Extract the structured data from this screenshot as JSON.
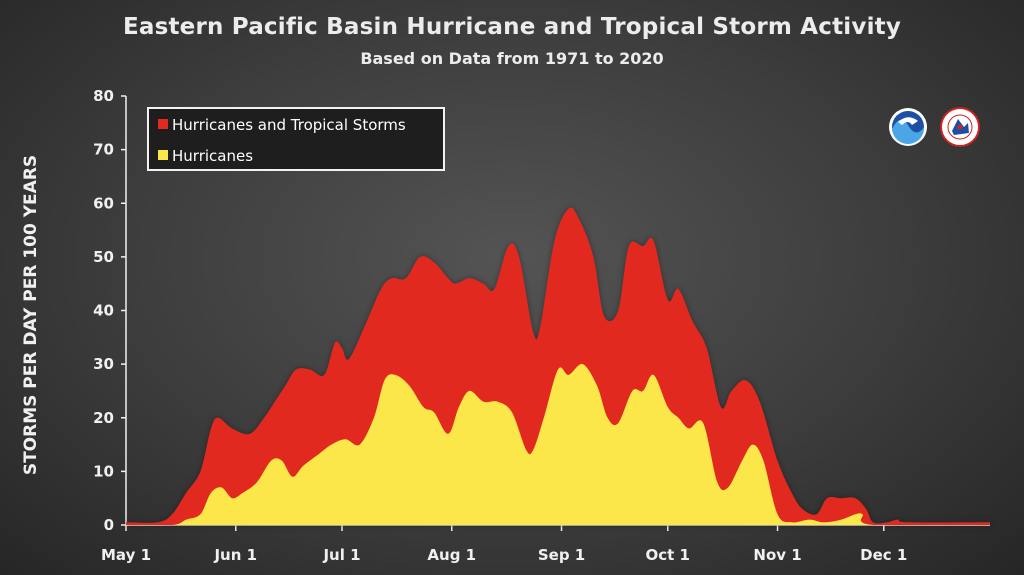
{
  "colors": {
    "tropical_storm_fill": "#e2291f",
    "hurricane_fill": "#fbe74a",
    "background": "#3c3c3c",
    "text": "#ececec"
  },
  "logos": [
    {
      "name": "noaa-logo",
      "icon": "noaa-emblem"
    },
    {
      "name": "nws-logo",
      "icon": "national-weather-service-emblem"
    }
  ],
  "chart_data": {
    "type": "area",
    "title": "Eastern Pacific Basin Hurricane and Tropical Storm Activity",
    "subtitle": "Based on Data from 1971 to 2020",
    "xlabel": "",
    "ylabel": "STORMS PER DAY PER 100 YEARS",
    "ylim": [
      0,
      80
    ],
    "yticks": [
      "0",
      "10",
      "20",
      "30",
      "40",
      "50",
      "60",
      "70",
      "80"
    ],
    "xlim": [
      "May 1",
      "Dec 31"
    ],
    "xticks": [
      "May 1",
      "Jun 1",
      "Jul 1",
      "Aug 1",
      "Sep 1",
      "Oct 1",
      "Nov 1",
      "Dec 1"
    ],
    "grid": false,
    "legend_position": "top-left",
    "series": [
      {
        "name": "Hurricanes and Tropical Storms",
        "color": "#e2291f",
        "points": [
          [
            "May 1",
            0.5
          ],
          [
            "May 10",
            0.5
          ],
          [
            "May 14",
            2
          ],
          [
            "May 18",
            6
          ],
          [
            "May 22",
            10
          ],
          [
            "May 25",
            18
          ],
          [
            "May 27",
            20
          ],
          [
            "May 31",
            18
          ],
          [
            "Jun 5",
            17
          ],
          [
            "Jun 9",
            20
          ],
          [
            "Jun 12",
            23
          ],
          [
            "Jun 15",
            26
          ],
          [
            "Jun 18",
            29
          ],
          [
            "Jun 22",
            29
          ],
          [
            "Jun 26",
            28
          ],
          [
            "Jun 29",
            34
          ],
          [
            "Jul 1",
            33
          ],
          [
            "Jul 3",
            31
          ],
          [
            "Jul 8",
            38
          ],
          [
            "Jul 12",
            44
          ],
          [
            "Jul 15",
            46
          ],
          [
            "Jul 19",
            46
          ],
          [
            "Jul 23",
            50
          ],
          [
            "Jul 27",
            49
          ],
          [
            "Jul 31",
            46
          ],
          [
            "Aug 2",
            45
          ],
          [
            "Aug 6",
            46
          ],
          [
            "Aug 10",
            45
          ],
          [
            "Aug 13",
            44
          ],
          [
            "Aug 17",
            52
          ],
          [
            "Aug 20",
            50
          ],
          [
            "Aug 24",
            36
          ],
          [
            "Aug 26",
            37
          ],
          [
            "Aug 30",
            53
          ],
          [
            "Sep 3",
            59
          ],
          [
            "Sep 6",
            57
          ],
          [
            "Sep 10",
            50
          ],
          [
            "Sep 13",
            39
          ],
          [
            "Sep 17",
            40
          ],
          [
            "Sep 20",
            52
          ],
          [
            "Sep 24",
            52
          ],
          [
            "Sep 27",
            53
          ],
          [
            "Oct 1",
            42
          ],
          [
            "Oct 4",
            44
          ],
          [
            "Oct 8",
            38
          ],
          [
            "Oct 12",
            33
          ],
          [
            "Oct 16",
            22
          ],
          [
            "Oct 19",
            25
          ],
          [
            "Oct 23",
            27
          ],
          [
            "Oct 27",
            23
          ],
          [
            "Nov 1",
            12
          ],
          [
            "Nov 5",
            6
          ],
          [
            "Nov 8",
            3
          ],
          [
            "Nov 12",
            2
          ],
          [
            "Nov 15",
            5
          ],
          [
            "Nov 19",
            5
          ],
          [
            "Nov 23",
            5
          ],
          [
            "Nov 26",
            3
          ],
          [
            "Nov 28",
            0.5
          ],
          [
            "Dec 2",
            0.5
          ],
          [
            "Dec 5",
            1
          ],
          [
            "Dec 8",
            0.5
          ],
          [
            "Dec 31",
            0.5
          ]
        ]
      },
      {
        "name": "Hurricanes",
        "color": "#fbe74a",
        "points": [
          [
            "May 1",
            0
          ],
          [
            "May 14",
            0
          ],
          [
            "May 18",
            1
          ],
          [
            "May 22",
            2
          ],
          [
            "May 25",
            6
          ],
          [
            "May 28",
            7
          ],
          [
            "May 31",
            5
          ],
          [
            "Jun 3",
            6
          ],
          [
            "Jun 7",
            8
          ],
          [
            "Jun 11",
            12
          ],
          [
            "Jun 14",
            12
          ],
          [
            "Jun 17",
            9
          ],
          [
            "Jun 20",
            11
          ],
          [
            "Jun 24",
            13
          ],
          [
            "Jun 28",
            15
          ],
          [
            "Jul 2",
            16
          ],
          [
            "Jul 6",
            15
          ],
          [
            "Jul 10",
            20
          ],
          [
            "Jul 13",
            27
          ],
          [
            "Jul 16",
            28
          ],
          [
            "Jul 20",
            26
          ],
          [
            "Jul 24",
            22
          ],
          [
            "Jul 27",
            21
          ],
          [
            "Jul 31",
            17
          ],
          [
            "Aug 3",
            22
          ],
          [
            "Aug 6",
            25
          ],
          [
            "Aug 10",
            23
          ],
          [
            "Aug 14",
            23
          ],
          [
            "Aug 18",
            21
          ],
          [
            "Aug 22",
            14
          ],
          [
            "Aug 24",
            14
          ],
          [
            "Aug 27",
            20
          ],
          [
            "Aug 31",
            29
          ],
          [
            "Sep 3",
            28
          ],
          [
            "Sep 7",
            30
          ],
          [
            "Sep 11",
            26
          ],
          [
            "Sep 14",
            20
          ],
          [
            "Sep 17",
            19
          ],
          [
            "Sep 21",
            25
          ],
          [
            "Sep 24",
            25
          ],
          [
            "Sep 27",
            28
          ],
          [
            "Oct 1",
            22
          ],
          [
            "Oct 4",
            20
          ],
          [
            "Oct 7",
            18
          ],
          [
            "Oct 11",
            19
          ],
          [
            "Oct 15",
            8
          ],
          [
            "Oct 18",
            7
          ],
          [
            "Oct 22",
            12
          ],
          [
            "Oct 25",
            15
          ],
          [
            "Oct 28",
            12
          ],
          [
            "Nov 1",
            2
          ],
          [
            "Nov 5",
            0.5
          ],
          [
            "Nov 10",
            1
          ],
          [
            "Nov 14",
            0.5
          ],
          [
            "Nov 19",
            1
          ],
          [
            "Nov 23",
            2
          ],
          [
            "Nov 25",
            2
          ],
          [
            "Nov 28",
            0
          ],
          [
            "Dec 31",
            0
          ]
        ]
      }
    ]
  }
}
